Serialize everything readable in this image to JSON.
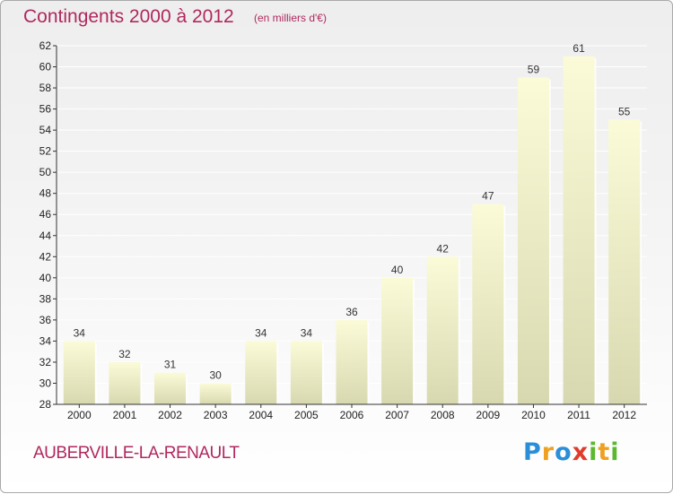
{
  "header": {
    "title": "Contingents 2000 à 2012",
    "subtitle": "(en milliers d'€)"
  },
  "footer": {
    "commune": "AUBERVILLE-LA-RENAULT",
    "logo": {
      "text": "Proxiti",
      "letters": [
        {
          "ch": "P",
          "color": "#2a8fd8"
        },
        {
          "ch": "r",
          "color": "#f0a020"
        },
        {
          "ch": "o",
          "color": "#2a8fd8"
        },
        {
          "ch": "x",
          "color": "#e03c2c"
        },
        {
          "ch": "i",
          "color": "#5cb82e"
        },
        {
          "ch": "t",
          "color": "#f0a020"
        },
        {
          "ch": "i",
          "color": "#5cb82e"
        }
      ]
    }
  },
  "colors": {
    "title": "#b0285e",
    "bar_top": "#fbfbd8",
    "bar_bottom": "#d8d8b0",
    "grid": "#ffffff",
    "axis": "#333333"
  },
  "chart_data": {
    "type": "bar",
    "title": "Contingents 2000 à 2012",
    "subtitle": "(en milliers d'€)",
    "categories": [
      "2000",
      "2001",
      "2002",
      "2003",
      "2004",
      "2005",
      "2006",
      "2007",
      "2008",
      "2009",
      "2010",
      "2011",
      "2012"
    ],
    "values": [
      34,
      32,
      31,
      30,
      34,
      34,
      36,
      40,
      42,
      47,
      59,
      61,
      55
    ],
    "ylim": [
      28,
      62
    ],
    "yticks": [
      28,
      30,
      32,
      34,
      36,
      38,
      40,
      42,
      44,
      46,
      48,
      50,
      52,
      54,
      56,
      58,
      60,
      62
    ],
    "grid": true,
    "data_labels": true
  }
}
